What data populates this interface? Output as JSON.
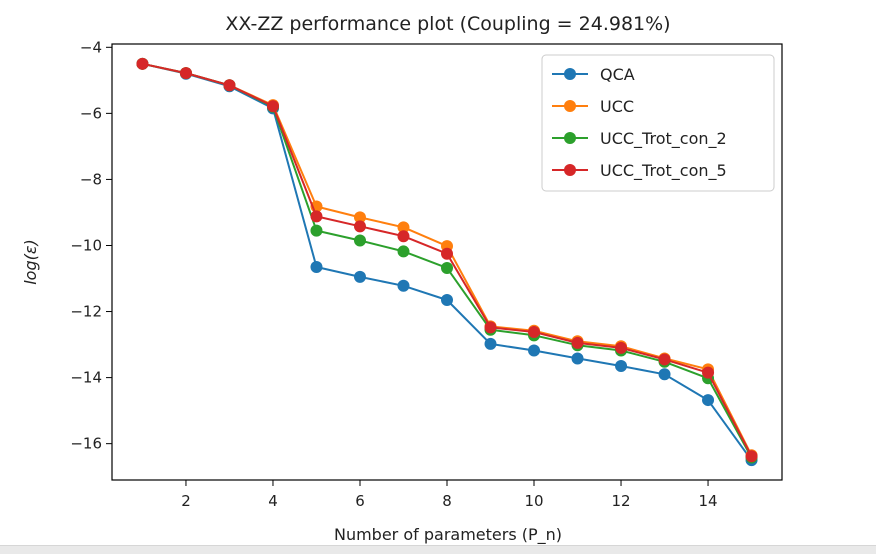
{
  "chart_data": {
    "type": "line",
    "title": "XX-ZZ performance plot (Coupling = 24.981%)",
    "xlabel": "Number of parameters (P_n)",
    "ylabel": "log(ε)",
    "xlim": [
      0.3,
      15.7
    ],
    "ylim": [
      -17.1,
      -3.9
    ],
    "xticks": [
      2,
      4,
      6,
      8,
      10,
      12,
      14
    ],
    "yticks": [
      -4,
      -6,
      -8,
      -10,
      -12,
      -14,
      -16
    ],
    "grid": false,
    "legend_position": "top-right",
    "x": [
      1,
      2,
      3,
      4,
      5,
      6,
      7,
      8,
      9,
      10,
      11,
      12,
      13,
      14,
      15
    ],
    "series": [
      {
        "name": "QCA",
        "color": "#1f77b4",
        "values": [
          -4.5,
          -4.8,
          -5.18,
          -5.85,
          -10.65,
          -10.95,
          -11.22,
          -11.65,
          -12.98,
          -13.18,
          -13.42,
          -13.65,
          -13.9,
          -14.68,
          -16.5
        ]
      },
      {
        "name": "UCC",
        "color": "#ff7f0e",
        "values": [
          -4.5,
          -4.78,
          -5.15,
          -5.75,
          -8.82,
          -9.15,
          -9.45,
          -10.02,
          -12.45,
          -12.58,
          -12.9,
          -13.05,
          -13.42,
          -13.75,
          -16.35
        ]
      },
      {
        "name": "UCC_Trot_con_2",
        "color": "#2ca02c",
        "values": [
          -4.5,
          -4.78,
          -5.15,
          -5.8,
          -9.55,
          -9.85,
          -10.18,
          -10.68,
          -12.55,
          -12.72,
          -13.02,
          -13.18,
          -13.52,
          -14.02,
          -16.42
        ]
      },
      {
        "name": "UCC_Trot_con_5",
        "color": "#d62728",
        "values": [
          -4.5,
          -4.78,
          -5.15,
          -5.78,
          -9.12,
          -9.42,
          -9.72,
          -10.25,
          -12.48,
          -12.62,
          -12.95,
          -13.1,
          -13.45,
          -13.85,
          -16.38
        ]
      }
    ]
  }
}
